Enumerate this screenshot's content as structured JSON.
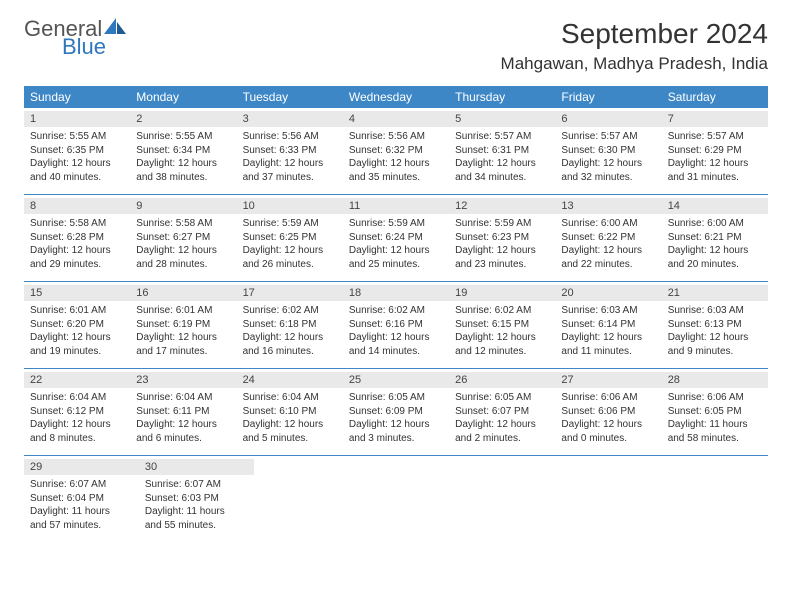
{
  "logo": {
    "general": "General",
    "blue": "Blue"
  },
  "title": "September 2024",
  "location": "Mahgawan, Madhya Pradesh, India",
  "colors": {
    "header_bg": "#3d87c7",
    "header_text": "#ffffff",
    "daynum_bg": "#e9e9e9",
    "body_text": "#333333",
    "logo_gray": "#555555",
    "logo_blue": "#2f78bd",
    "week_border": "#3d87c7",
    "page_bg": "#ffffff"
  },
  "typography": {
    "title_fontsize": 28,
    "location_fontsize": 17,
    "dayheader_fontsize": 12,
    "daynum_fontsize": 11,
    "cell_fontsize": 10
  },
  "dayNames": [
    "Sunday",
    "Monday",
    "Tuesday",
    "Wednesday",
    "Thursday",
    "Friday",
    "Saturday"
  ],
  "weeks": [
    [
      {
        "n": "1",
        "sr": "Sunrise: 5:55 AM",
        "ss": "Sunset: 6:35 PM",
        "d1": "Daylight: 12 hours",
        "d2": "and 40 minutes."
      },
      {
        "n": "2",
        "sr": "Sunrise: 5:55 AM",
        "ss": "Sunset: 6:34 PM",
        "d1": "Daylight: 12 hours",
        "d2": "and 38 minutes."
      },
      {
        "n": "3",
        "sr": "Sunrise: 5:56 AM",
        "ss": "Sunset: 6:33 PM",
        "d1": "Daylight: 12 hours",
        "d2": "and 37 minutes."
      },
      {
        "n": "4",
        "sr": "Sunrise: 5:56 AM",
        "ss": "Sunset: 6:32 PM",
        "d1": "Daylight: 12 hours",
        "d2": "and 35 minutes."
      },
      {
        "n": "5",
        "sr": "Sunrise: 5:57 AM",
        "ss": "Sunset: 6:31 PM",
        "d1": "Daylight: 12 hours",
        "d2": "and 34 minutes."
      },
      {
        "n": "6",
        "sr": "Sunrise: 5:57 AM",
        "ss": "Sunset: 6:30 PM",
        "d1": "Daylight: 12 hours",
        "d2": "and 32 minutes."
      },
      {
        "n": "7",
        "sr": "Sunrise: 5:57 AM",
        "ss": "Sunset: 6:29 PM",
        "d1": "Daylight: 12 hours",
        "d2": "and 31 minutes."
      }
    ],
    [
      {
        "n": "8",
        "sr": "Sunrise: 5:58 AM",
        "ss": "Sunset: 6:28 PM",
        "d1": "Daylight: 12 hours",
        "d2": "and 29 minutes."
      },
      {
        "n": "9",
        "sr": "Sunrise: 5:58 AM",
        "ss": "Sunset: 6:27 PM",
        "d1": "Daylight: 12 hours",
        "d2": "and 28 minutes."
      },
      {
        "n": "10",
        "sr": "Sunrise: 5:59 AM",
        "ss": "Sunset: 6:25 PM",
        "d1": "Daylight: 12 hours",
        "d2": "and 26 minutes."
      },
      {
        "n": "11",
        "sr": "Sunrise: 5:59 AM",
        "ss": "Sunset: 6:24 PM",
        "d1": "Daylight: 12 hours",
        "d2": "and 25 minutes."
      },
      {
        "n": "12",
        "sr": "Sunrise: 5:59 AM",
        "ss": "Sunset: 6:23 PM",
        "d1": "Daylight: 12 hours",
        "d2": "and 23 minutes."
      },
      {
        "n": "13",
        "sr": "Sunrise: 6:00 AM",
        "ss": "Sunset: 6:22 PM",
        "d1": "Daylight: 12 hours",
        "d2": "and 22 minutes."
      },
      {
        "n": "14",
        "sr": "Sunrise: 6:00 AM",
        "ss": "Sunset: 6:21 PM",
        "d1": "Daylight: 12 hours",
        "d2": "and 20 minutes."
      }
    ],
    [
      {
        "n": "15",
        "sr": "Sunrise: 6:01 AM",
        "ss": "Sunset: 6:20 PM",
        "d1": "Daylight: 12 hours",
        "d2": "and 19 minutes."
      },
      {
        "n": "16",
        "sr": "Sunrise: 6:01 AM",
        "ss": "Sunset: 6:19 PM",
        "d1": "Daylight: 12 hours",
        "d2": "and 17 minutes."
      },
      {
        "n": "17",
        "sr": "Sunrise: 6:02 AM",
        "ss": "Sunset: 6:18 PM",
        "d1": "Daylight: 12 hours",
        "d2": "and 16 minutes."
      },
      {
        "n": "18",
        "sr": "Sunrise: 6:02 AM",
        "ss": "Sunset: 6:16 PM",
        "d1": "Daylight: 12 hours",
        "d2": "and 14 minutes."
      },
      {
        "n": "19",
        "sr": "Sunrise: 6:02 AM",
        "ss": "Sunset: 6:15 PM",
        "d1": "Daylight: 12 hours",
        "d2": "and 12 minutes."
      },
      {
        "n": "20",
        "sr": "Sunrise: 6:03 AM",
        "ss": "Sunset: 6:14 PM",
        "d1": "Daylight: 12 hours",
        "d2": "and 11 minutes."
      },
      {
        "n": "21",
        "sr": "Sunrise: 6:03 AM",
        "ss": "Sunset: 6:13 PM",
        "d1": "Daylight: 12 hours",
        "d2": "and 9 minutes."
      }
    ],
    [
      {
        "n": "22",
        "sr": "Sunrise: 6:04 AM",
        "ss": "Sunset: 6:12 PM",
        "d1": "Daylight: 12 hours",
        "d2": "and 8 minutes."
      },
      {
        "n": "23",
        "sr": "Sunrise: 6:04 AM",
        "ss": "Sunset: 6:11 PM",
        "d1": "Daylight: 12 hours",
        "d2": "and 6 minutes."
      },
      {
        "n": "24",
        "sr": "Sunrise: 6:04 AM",
        "ss": "Sunset: 6:10 PM",
        "d1": "Daylight: 12 hours",
        "d2": "and 5 minutes."
      },
      {
        "n": "25",
        "sr": "Sunrise: 6:05 AM",
        "ss": "Sunset: 6:09 PM",
        "d1": "Daylight: 12 hours",
        "d2": "and 3 minutes."
      },
      {
        "n": "26",
        "sr": "Sunrise: 6:05 AM",
        "ss": "Sunset: 6:07 PM",
        "d1": "Daylight: 12 hours",
        "d2": "and 2 minutes."
      },
      {
        "n": "27",
        "sr": "Sunrise: 6:06 AM",
        "ss": "Sunset: 6:06 PM",
        "d1": "Daylight: 12 hours",
        "d2": "and 0 minutes."
      },
      {
        "n": "28",
        "sr": "Sunrise: 6:06 AM",
        "ss": "Sunset: 6:05 PM",
        "d1": "Daylight: 11 hours",
        "d2": "and 58 minutes."
      }
    ],
    [
      {
        "n": "29",
        "sr": "Sunrise: 6:07 AM",
        "ss": "Sunset: 6:04 PM",
        "d1": "Daylight: 11 hours",
        "d2": "and 57 minutes."
      },
      {
        "n": "30",
        "sr": "Sunrise: 6:07 AM",
        "ss": "Sunset: 6:03 PM",
        "d1": "Daylight: 11 hours",
        "d2": "and 55 minutes."
      },
      null,
      null,
      null,
      null,
      null
    ]
  ]
}
